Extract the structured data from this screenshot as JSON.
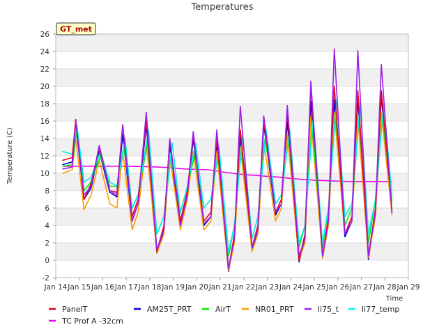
{
  "chart_data": {
    "type": "line",
    "title": "Temperatures",
    "xlabel": "Time",
    "ylabel": "Temperature (C)",
    "badge": "GT_met",
    "x_ticks": [
      "Jan 14",
      "Jan 15",
      "Jan 16",
      "Jan 17",
      "Jan 18",
      "Jan 19",
      "Jan 20",
      "Jan 21",
      "Jan 22",
      "Jan 23",
      "Jan 24",
      "Jan 25",
      "Jan 26",
      "Jan 27",
      "Jan 28",
      "Jan 29"
    ],
    "xlim": [
      14,
      29
    ],
    "ylim": [
      -2,
      26
    ],
    "y_ticks": [
      -2,
      0,
      2,
      4,
      6,
      8,
      10,
      12,
      14,
      16,
      18,
      20,
      22,
      24,
      26
    ],
    "grid": "horizontal bands",
    "legend_position": "bottom",
    "series": [
      {
        "name": "PanelT",
        "color": "#e8001c",
        "x": [
          14.3,
          14.7,
          14.85,
          15.2,
          15.5,
          15.85,
          16.3,
          16.6,
          16.85,
          17.25,
          17.5,
          17.85,
          18.3,
          18.6,
          18.85,
          19.3,
          19.6,
          19.85,
          20.3,
          20.6,
          20.85,
          21.35,
          21.6,
          21.85,
          22.35,
          22.6,
          22.85,
          23.35,
          23.6,
          23.85,
          24.35,
          24.6,
          24.85,
          25.35,
          25.6,
          25.85,
          26.3,
          26.6,
          26.85,
          27.3,
          27.6,
          27.85,
          28.3
        ],
        "values": [
          11.5,
          11.8,
          16.2,
          7,
          8.8,
          13,
          8,
          7.8,
          15.6,
          5,
          7,
          16,
          1,
          4,
          13.8,
          4.5,
          8,
          14.5,
          4.5,
          5.5,
          14,
          -1,
          3,
          15,
          1.5,
          4,
          16,
          5.5,
          7,
          17,
          0,
          3,
          20,
          0.5,
          5,
          20,
          3,
          5,
          19.5,
          0.5,
          6,
          19.5,
          5.8
        ]
      },
      {
        "name": "AM25T_PRT",
        "color": "#0000cc",
        "x": [
          14.3,
          14.7,
          14.85,
          15.2,
          15.5,
          15.85,
          16.3,
          16.6,
          16.85,
          17.25,
          17.5,
          17.85,
          18.3,
          18.6,
          18.85,
          19.3,
          19.6,
          19.85,
          20.3,
          20.6,
          20.85,
          21.35,
          21.6,
          21.85,
          22.35,
          22.6,
          22.85,
          23.35,
          23.6,
          23.85,
          24.35,
          24.6,
          24.85,
          25.35,
          25.6,
          25.85,
          26.3,
          26.6,
          26.85,
          27.3,
          27.6,
          27.85,
          28.3
        ],
        "values": [
          11,
          11.3,
          15.8,
          7,
          8.3,
          12.5,
          7.8,
          7.3,
          14.5,
          4.5,
          6.5,
          15.5,
          0.8,
          3.5,
          13.2,
          4,
          7.5,
          14,
          4,
          5,
          13.5,
          -1.3,
          2.5,
          14.2,
          1.2,
          3.5,
          15.6,
          5.2,
          6.5,
          15.9,
          -0.2,
          2.5,
          18.3,
          0.3,
          4.5,
          18.4,
          2.7,
          4.5,
          18.6,
          0.1,
          5.5,
          18.9,
          5.5
        ]
      },
      {
        "name": "AirT",
        "color": "#00ee00",
        "x": [
          14.3,
          14.7,
          14.9,
          15.2,
          15.5,
          15.9,
          16.3,
          16.6,
          16.9,
          17.25,
          17.5,
          17.9,
          18.3,
          18.6,
          18.9,
          19.3,
          19.6,
          19.9,
          20.3,
          20.6,
          20.9,
          21.35,
          21.6,
          21.9,
          22.35,
          22.6,
          22.9,
          23.35,
          23.6,
          23.9,
          24.35,
          24.6,
          24.9,
          25.35,
          25.6,
          25.9,
          26.3,
          26.6,
          26.9,
          27.3,
          27.6,
          27.9,
          28.3
        ],
        "values": [
          10.8,
          11,
          15,
          8,
          9,
          12,
          8.5,
          8.5,
          13,
          6,
          7.5,
          13.5,
          3,
          5,
          12,
          5.5,
          8.5,
          12,
          6,
          7,
          12,
          0.5,
          4,
          13,
          2.5,
          5,
          14,
          6.5,
          7.5,
          14,
          1.5,
          4,
          15.5,
          1.5,
          6,
          17,
          4,
          6,
          16.5,
          2,
          7,
          16.5,
          6.8
        ]
      },
      {
        "name": "NR01_PRT",
        "color": "#ff9900",
        "x": [
          14.3,
          14.7,
          14.85,
          15.2,
          15.5,
          15.85,
          16.3,
          16.6,
          16.85,
          17.25,
          17.5,
          17.85,
          18.3,
          18.6,
          18.85,
          19.3,
          19.6,
          19.85,
          20.3,
          20.6,
          20.85,
          21.35,
          21.6,
          21.85,
          22.35,
          22.6,
          22.85,
          23.35,
          23.6,
          23.85,
          24.35,
          24.6,
          24.85,
          25.35,
          25.6,
          25.85,
          26.3,
          26.6,
          26.85,
          27.3,
          27.6,
          27.85,
          28.3
        ],
        "values": [
          10,
          10.4,
          14,
          5.8,
          7.5,
          11.5,
          6.5,
          6,
          12.5,
          3.5,
          5.5,
          13.5,
          0.8,
          3,
          12,
          3.5,
          7,
          12.5,
          3.5,
          4.5,
          12.5,
          -1.2,
          2,
          13,
          1,
          3,
          13.5,
          4.5,
          6,
          14.5,
          0,
          2,
          16.5,
          0.2,
          4,
          17,
          3,
          4.5,
          16.5,
          0.3,
          5,
          17,
          5.2
        ]
      },
      {
        "name": "li75_t",
        "color": "#9b1de8",
        "x": [
          14.3,
          14.7,
          14.85,
          15.2,
          15.5,
          15.85,
          16.3,
          16.6,
          16.85,
          17.25,
          17.5,
          17.85,
          18.3,
          18.6,
          18.85,
          19.3,
          19.6,
          19.85,
          20.3,
          20.6,
          20.85,
          21.35,
          21.6,
          21.85,
          22.35,
          22.6,
          22.85,
          23.35,
          23.6,
          23.85,
          24.35,
          24.6,
          24.85,
          25.35,
          25.6,
          25.85,
          26.3,
          26.6,
          26.85,
          27.3,
          27.6,
          27.85,
          28.3
        ],
        "values": [
          10.5,
          10.7,
          16,
          7.5,
          8.5,
          13.2,
          8,
          7.5,
          15.5,
          4.5,
          6.5,
          17,
          1.2,
          3.5,
          14,
          4,
          7.5,
          14.8,
          4.2,
          5,
          15,
          -1,
          2.5,
          17.7,
          1.5,
          3.5,
          16.6,
          5.5,
          6.5,
          17.8,
          0.5,
          2.5,
          20.6,
          0.5,
          4.5,
          24.3,
          3,
          4.5,
          24.1,
          0.5,
          5.5,
          22.5,
          5.5
        ]
      },
      {
        "name": "li77_temp",
        "color": "#00eeee",
        "x": [
          14.3,
          14.7,
          14.9,
          15.2,
          15.5,
          15.9,
          16.3,
          16.6,
          16.95,
          17.25,
          17.5,
          17.95,
          18.3,
          18.6,
          18.95,
          19.3,
          19.6,
          19.95,
          20.3,
          20.6,
          20.95,
          21.35,
          21.6,
          21.95,
          22.35,
          22.6,
          22.95,
          23.35,
          23.6,
          23.95,
          24.35,
          24.6,
          24.95,
          25.35,
          25.6,
          25.95,
          26.3,
          26.6,
          26.95,
          27.3,
          27.6,
          27.95,
          28.3
        ],
        "values": [
          12.5,
          12.2,
          15.5,
          9,
          9.5,
          12.5,
          9,
          8.5,
          14,
          6,
          7.5,
          15,
          3,
          5,
          13.5,
          5.5,
          8.5,
          13.5,
          6,
          7,
          13,
          1,
          4,
          14.5,
          2.5,
          5,
          15,
          6.5,
          7.5,
          15,
          2,
          4,
          16.5,
          2,
          6,
          18.5,
          5,
          6.5,
          18,
          3,
          7,
          18,
          7.5
        ]
      },
      {
        "name": "TC Prof A -32cm",
        "color": "#ee00ee",
        "x": [
          14.3,
          15,
          16,
          17,
          18,
          18.5,
          19,
          19.5,
          20,
          20.5,
          21,
          21.5,
          22,
          22.5,
          23,
          23.5,
          24,
          24.5,
          25,
          25.5,
          26,
          26.5,
          27,
          27.5,
          28,
          28.3
        ],
        "values": [
          10.8,
          10.8,
          10.8,
          10.8,
          10.75,
          10.7,
          10.6,
          10.5,
          10.45,
          10.4,
          10.2,
          10.0,
          9.85,
          9.75,
          9.65,
          9.55,
          9.4,
          9.3,
          9.2,
          9.15,
          9.1,
          9.05,
          9.05,
          9.05,
          9.05,
          9.05
        ]
      }
    ]
  }
}
